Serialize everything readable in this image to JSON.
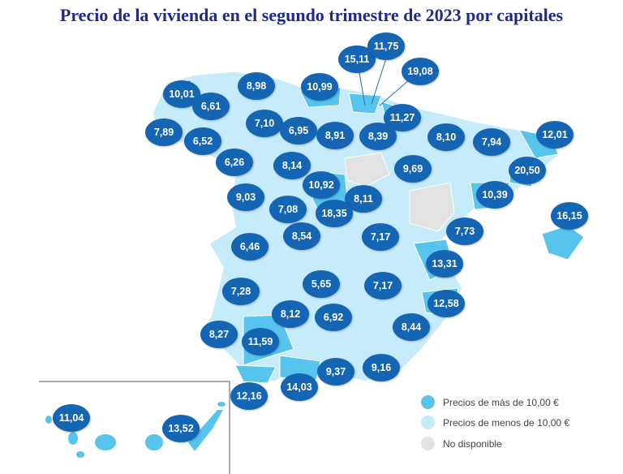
{
  "title": "Precio de la vivienda en el segundo trimestre de 2023 por capitales",
  "colors": {
    "above_10": "#57c4ee",
    "below_10": "#c6ebfa",
    "not_available": "#e3e3e3",
    "bubble": "#1565b5",
    "title": "#1f2a8c"
  },
  "legend": [
    {
      "label": "Precios de más de 10,00 €",
      "color": "#57c4ee"
    },
    {
      "label": "Precios de menos de 10,00 €",
      "color": "#c6ebfa"
    },
    {
      "label": "No disponible",
      "color": "#e3e3e3"
    }
  ],
  "prices": [
    "15,11",
    "11,75",
    "19,08",
    "10,01",
    "8,98",
    "10,99",
    "6,61",
    "11,27",
    "7,10",
    "6,95",
    "8,91",
    "8,39",
    "7,89",
    "6,52",
    "8,10",
    "7,94",
    "12,01",
    "6,26",
    "8,14",
    "9,69",
    "20,50",
    "10,92",
    "9,03",
    "7,08",
    "8,11",
    "10,39",
    "18,35",
    "16,15",
    "8,54",
    "7,17",
    "7,73",
    "6,46",
    "13,31",
    "5,65",
    "7,17",
    "7,28",
    "12,58",
    "8,12",
    "6,92",
    "8,27",
    "8,44",
    "11,59",
    "9,37",
    "9,16",
    "14,03",
    "12,16",
    "11,04",
    "13,52"
  ]
}
